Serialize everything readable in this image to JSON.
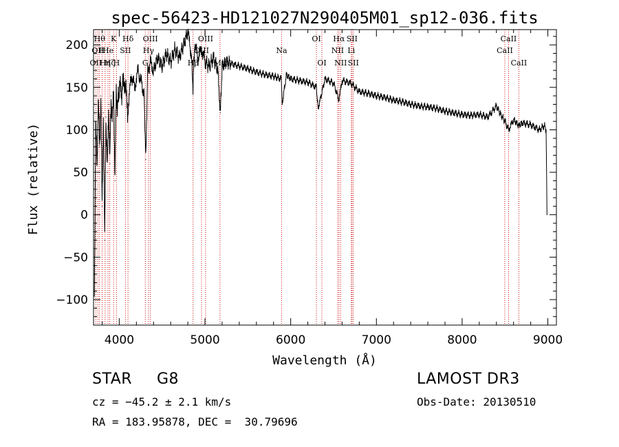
{
  "chart_data": {
    "type": "line",
    "title": "spec-56423-HD121027N290405M01_sp12-036.fits",
    "xlabel": "Wavelength (Å)",
    "ylabel": "Flux (relative)",
    "xlim": [
      3700,
      9100
    ],
    "ylim": [
      -130,
      218
    ],
    "xticks": [
      4000,
      5000,
      6000,
      7000,
      8000,
      9000
    ],
    "xtick_labels": [
      "4000",
      "5000",
      "6000",
      "7000",
      "8000",
      "9000"
    ],
    "yticks": [
      -100,
      -50,
      0,
      50,
      100,
      150,
      200
    ],
    "ytick_labels": [
      "−100",
      "−50",
      "0",
      "50",
      "100",
      "150",
      "200"
    ],
    "series": [
      {
        "name": "Flux",
        "x": [
          3710,
          3725,
          3740,
          3755,
          3770,
          3785,
          3800,
          3815,
          3830,
          3845,
          3860,
          3875,
          3890,
          3905,
          3920,
          3935,
          3950,
          3965,
          3980,
          4000,
          4030,
          4060,
          4100,
          4140,
          4180,
          4220,
          4260,
          4290,
          4310,
          4330,
          4360,
          4400,
          4450,
          4500,
          4550,
          4600,
          4650,
          4700,
          4750,
          4800,
          4840,
          4860,
          4880,
          4920,
          4960,
          5000,
          5050,
          5100,
          5150,
          5180,
          5200,
          5250,
          5300,
          5400,
          5500,
          5600,
          5700,
          5800,
          5890,
          5900,
          5950,
          6000,
          6100,
          6200,
          6300,
          6320,
          6400,
          6500,
          6563,
          6600,
          6700,
          6800,
          6900,
          7000,
          7100,
          7200,
          7300,
          7400,
          7500,
          7600,
          7700,
          7800,
          7900,
          8000,
          8100,
          8200,
          8300,
          8400,
          8450,
          8500,
          8542,
          8600,
          8662,
          8700,
          8800,
          8900,
          8960,
          8980,
          8990
        ],
        "values": [
          -90,
          105,
          60,
          135,
          80,
          140,
          10,
          120,
          -30,
          115,
          50,
          130,
          60,
          140,
          110,
          145,
          40,
          150,
          125,
          150,
          145,
          160,
          120,
          165,
          150,
          170,
          155,
          140,
          65,
          165,
          180,
          170,
          185,
          175,
          190,
          180,
          195,
          185,
          200,
          215,
          190,
          150,
          200,
          185,
          195,
          180,
          175,
          185,
          170,
          120,
          175,
          180,
          178,
          175,
          172,
          168,
          165,
          163,
          160,
          130,
          165,
          160,
          158,
          156,
          150,
          125,
          160,
          155,
          135,
          158,
          155,
          145,
          143,
          140,
          138,
          135,
          133,
          130,
          128,
          127,
          125,
          122,
          120,
          118,
          117,
          118,
          115,
          128,
          118,
          110,
          100,
          112,
          105,
          108,
          106,
          100,
          105,
          100,
          0
        ]
      }
    ],
    "emission_lines": [
      {
        "wavelength": 3727,
        "label": "OII",
        "row": 3
      },
      {
        "wavelength": 3750,
        "label": "OII",
        "row": 2
      },
      {
        "wavelength": 3770,
        "label": "Hθ",
        "row": 1
      },
      {
        "wavelength": 3800,
        "label": "H",
        "row": 2
      },
      {
        "wavelength": 3835,
        "label": "Hη",
        "row": 3
      },
      {
        "wavelength": 3869,
        "label": "He",
        "row": 2
      },
      {
        "wavelength": 3889,
        "label": "Hζ",
        "row": 3
      },
      {
        "wavelength": 3934,
        "label": "K",
        "row": 1
      },
      {
        "wavelength": 3968,
        "label": "H",
        "row": 3
      },
      {
        "wavelength": 4072,
        "label": "SII",
        "row": 2
      },
      {
        "wavelength": 4102,
        "label": "Hδ",
        "row": 1
      },
      {
        "wavelength": 4304,
        "label": "G",
        "row": 3
      },
      {
        "wavelength": 4341,
        "label": "Hγ",
        "row": 2
      },
      {
        "wavelength": 4363,
        "label": "OIII",
        "row": 1
      },
      {
        "wavelength": 4861,
        "label": "Hβ",
        "row": 3
      },
      {
        "wavelength": 4959,
        "label": "OIII",
        "row": 2
      },
      {
        "wavelength": 5007,
        "label": "OIII",
        "row": 1
      },
      {
        "wavelength": 5175,
        "label": "Mg",
        "row": 3
      },
      {
        "wavelength": 5894,
        "label": "Na",
        "row": 2
      },
      {
        "wavelength": 6300,
        "label": "OI",
        "row": 1
      },
      {
        "wavelength": 6364,
        "label": "OI",
        "row": 3
      },
      {
        "wavelength": 6548,
        "label": "NII",
        "row": 2
      },
      {
        "wavelength": 6563,
        "label": "Hα",
        "row": 1
      },
      {
        "wavelength": 6583,
        "label": "NII",
        "row": 3
      },
      {
        "wavelength": 6707,
        "label": "Li",
        "row": 2
      },
      {
        "wavelength": 6716,
        "label": "SII",
        "row": 1
      },
      {
        "wavelength": 6731,
        "label": "SII",
        "row": 3
      },
      {
        "wavelength": 8498,
        "label": "CaII",
        "row": 2
      },
      {
        "wavelength": 8542,
        "label": "CaII",
        "row": 1
      },
      {
        "wavelength": 8662,
        "label": "CaII",
        "row": 3
      }
    ]
  },
  "info": {
    "object_class": "STAR",
    "subclass": "G8",
    "survey": "LAMOST DR3",
    "cz": "cz = −45.2 ± 2.1 km/s",
    "obs_date": "Obs-Date: 20130510",
    "coords": "RA = 183.95878, DEC =  30.79696"
  },
  "colors": {
    "spectrum": "#000000",
    "line_marker": "#cc0000",
    "axis": "#000000",
    "background": "#ffffff"
  }
}
